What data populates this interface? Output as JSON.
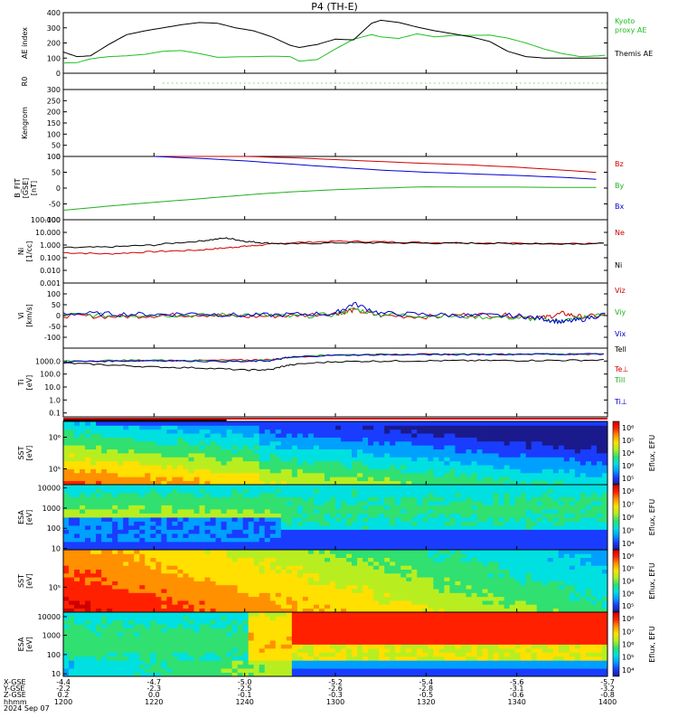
{
  "title": "P4 (TH-E)",
  "footer": {
    "row_labels": [
      "X-GSE",
      "Y-GSE",
      "Z-GSE",
      "hhmm",
      "2024 Sep 07"
    ],
    "columns": [
      {
        "x": "-4.4",
        "y": "-2.2",
        "z": "0.2",
        "t": "1200"
      },
      {
        "x": "-4.7",
        "y": "-2.3",
        "z": "0.0",
        "t": "1220"
      },
      {
        "x": "-5.0",
        "y": "-2.5",
        "z": "-0.1",
        "t": "1240"
      },
      {
        "x": "-5.2",
        "y": "-2.6",
        "z": "-0.3",
        "t": "1300"
      },
      {
        "x": "-5.4",
        "y": "-2.8",
        "z": "-0.5",
        "t": "1320"
      },
      {
        "x": "-5.6",
        "y": "-3.1",
        "z": "-0.6",
        "t": "1340"
      },
      {
        "x": "-5.7",
        "y": "-3.2",
        "z": "-0.8",
        "t": "1400"
      }
    ]
  },
  "colorbar": {
    "label": "Eflux, EFU"
  },
  "chart_data": [
    {
      "type": "line",
      "ylabel": "AE index",
      "ylim": [
        0,
        400
      ],
      "yticks": [
        "0",
        "100",
        "200",
        "300",
        "400"
      ],
      "x": [
        1200,
        1203,
        1206,
        1210,
        1214,
        1218,
        1222,
        1226,
        1230,
        1234,
        1238,
        1242,
        1246,
        1250,
        1252,
        1256,
        1300,
        1304,
        1308,
        1310,
        1314,
        1318,
        1322,
        1326,
        1330,
        1334,
        1338,
        1342,
        1346,
        1350,
        1354,
        1358,
        1400
      ],
      "series": [
        {
          "name": "Kyoto proxy AE",
          "color": "#20c020",
          "values": [
            68,
            70,
            95,
            110,
            115,
            125,
            145,
            150,
            130,
            105,
            108,
            110,
            112,
            110,
            80,
            90,
            160,
            225,
            255,
            240,
            230,
            260,
            240,
            250,
            250,
            252,
            232,
            200,
            160,
            130,
            110,
            115,
            120
          ]
        },
        {
          "name": "Themis AE",
          "color": "#000000",
          "values": [
            140,
            110,
            115,
            190,
            255,
            280,
            300,
            320,
            335,
            330,
            300,
            280,
            240,
            185,
            170,
            190,
            225,
            220,
            330,
            350,
            335,
            305,
            280,
            260,
            240,
            210,
            145,
            110,
            100,
            100,
            100,
            100,
            100
          ]
        }
      ]
    },
    {
      "type": "line",
      "ylabel": "R0",
      "series": [
        {
          "values": []
        }
      ]
    },
    {
      "type": "line",
      "ylabel": "Kengrom",
      "ylim": [
        0,
        300
      ],
      "yticks": [
        "0",
        "50",
        "100",
        "150",
        "200",
        "250",
        "300"
      ],
      "series": []
    },
    {
      "type": "line",
      "ylabel": "B_FIT\n[GSE]\n[nT]",
      "ylim": [
        -100,
        100
      ],
      "yticks": [
        "-100",
        "-50",
        "0",
        "50",
        "100"
      ],
      "x": [
        1200,
        1210,
        1220,
        1230,
        1240,
        1250,
        1300,
        1310,
        1320,
        1330,
        1340,
        1350,
        1400
      ],
      "series": [
        {
          "name": "Bz",
          "color": "#d00000",
          "values": [
            null,
            null,
            100,
            100,
            100,
            96,
            90,
            84,
            78,
            73,
            66,
            57,
            47
          ]
        },
        {
          "name": "By",
          "color": "#20b020",
          "values": [
            -70,
            -57,
            -45,
            -34,
            -22,
            -12,
            -5,
            0,
            4,
            3,
            3,
            2,
            2
          ]
        },
        {
          "name": "Bx",
          "color": "#0000d0",
          "values": [
            null,
            null,
            100,
            94,
            86,
            76,
            66,
            57,
            50,
            45,
            40,
            34,
            26
          ]
        }
      ]
    },
    {
      "type": "line",
      "ylabel": "Ni\n[1/cc]",
      "ylog": true,
      "ylim": [
        0.001,
        100
      ],
      "yticks": [
        "0.001",
        "0.010",
        "0.100",
        "1.000",
        "10.000",
        "100.000"
      ],
      "x": [
        1200,
        1210,
        1220,
        1230,
        1236,
        1240,
        1244,
        1250,
        1300,
        1310,
        1320,
        1330,
        1340,
        1350,
        1400
      ],
      "series": [
        {
          "name": "Ne",
          "color": "#d00000",
          "values": [
            0.25,
            0.2,
            0.3,
            0.4,
            0.6,
            0.8,
            1.0,
            1.5,
            2.0,
            1.8,
            1.6,
            1.5,
            1.4,
            1.3,
            1.3
          ]
        },
        {
          "name": "Ni",
          "color": "#000000",
          "values": [
            0.6,
            0.7,
            1.0,
            2.0,
            3.5,
            2.0,
            1.5,
            1.2,
            1.5,
            1.5,
            1.4,
            1.4,
            1.3,
            1.3,
            1.3
          ]
        }
      ]
    },
    {
      "type": "line",
      "ylabel": "Vi\n[km/s]",
      "ylim": [
        -150,
        150
      ],
      "yticks": [
        "-100",
        "-50",
        "0",
        "50",
        "100"
      ],
      "x": [
        1200,
        1210,
        1220,
        1230,
        1240,
        1250,
        1300,
        1304,
        1310,
        1320,
        1330,
        1340,
        1346,
        1350,
        1354,
        1400
      ],
      "series": [
        {
          "name": "Viz",
          "color": "#d00000",
          "values": [
            0,
            -5,
            0,
            5,
            -5,
            0,
            10,
            25,
            0,
            -5,
            5,
            0,
            -10,
            10,
            -5,
            0
          ]
        },
        {
          "name": "Viy",
          "color": "#20b020",
          "values": [
            5,
            0,
            5,
            0,
            5,
            -5,
            5,
            30,
            5,
            0,
            -5,
            -10,
            -20,
            -25,
            -10,
            5
          ]
        },
        {
          "name": "Vix",
          "color": "#0000d0",
          "values": [
            10,
            8,
            5,
            10,
            0,
            5,
            10,
            55,
            10,
            5,
            0,
            0,
            -15,
            -30,
            -20,
            10
          ]
        }
      ]
    },
    {
      "type": "line",
      "ylabel": "Ti\n[eV]",
      "ylog": true,
      "ylim": [
        0.05,
        10000
      ],
      "yticks": [
        "0.1",
        "1.0",
        "10.0",
        "100.0",
        "1000.0"
      ],
      "x": [
        1200,
        1210,
        1220,
        1230,
        1240,
        1246,
        1250,
        1300,
        1310,
        1320,
        1330,
        1340,
        1350,
        1400
      ],
      "series": [
        {
          "name": "Tell",
          "color": "#000000",
          "values": [
            700,
            500,
            350,
            300,
            200,
            220,
            500,
            900,
            1000,
            1050,
            1100,
            1100,
            1150,
            1200
          ]
        },
        {
          "name": "Te⊥",
          "color": "#d00000",
          "values": [
            900,
            1000,
            1100,
            1100,
            1200,
            1300,
            2000,
            3000,
            3200,
            3300,
            3300,
            3400,
            3400,
            3500
          ]
        },
        {
          "name": "Till",
          "color": "#20b020",
          "values": [
            1000,
            1100,
            1200,
            1100,
            1000,
            1200,
            2000,
            3000,
            3200,
            3300,
            3400,
            3500,
            3500,
            3600
          ]
        },
        {
          "name": "Ti⊥",
          "color": "#0000d0",
          "values": [
            900,
            1000,
            1100,
            1000,
            900,
            1100,
            1900,
            2900,
            3100,
            3200,
            3300,
            3400,
            3500,
            3600
          ]
        }
      ]
    },
    {
      "type": "heatmap",
      "ylabel": "SST\n[eV]",
      "ylog": true,
      "yticks": [
        "10⁵",
        "10⁶"
      ],
      "colorbar_ticks": [
        "10⁵",
        "10⁶",
        "10⁴",
        "10⁵",
        "10⁶"
      ]
    },
    {
      "type": "heatmap",
      "ylabel": "ESA\n[eV]",
      "ylog": true,
      "yticks": [
        "10",
        "100",
        "1000",
        "10000"
      ],
      "colorbar_ticks": [
        "10⁴",
        "10⁵",
        "10⁶",
        "10⁷",
        "10⁸"
      ]
    },
    {
      "type": "heatmap",
      "ylabel": "SST\n[eV]",
      "ylog": true,
      "yticks": [
        "10⁵"
      ],
      "colorbar_ticks": [
        "10⁵",
        "10⁶",
        "10⁴",
        "10⁵",
        "10⁶"
      ]
    },
    {
      "type": "heatmap",
      "ylabel": "ESA\n[eV]",
      "ylog": true,
      "yticks": [
        "10",
        "100",
        "1000",
        "10000"
      ],
      "colorbar_ticks": [
        "10⁴",
        "10⁵",
        "10⁶",
        "10⁷",
        "10⁸"
      ]
    }
  ]
}
